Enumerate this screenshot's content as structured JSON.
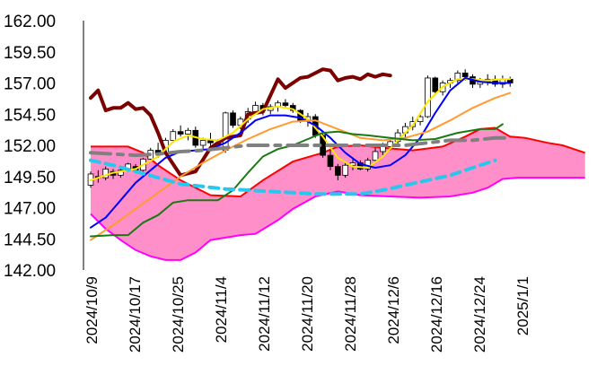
{
  "chart_data": {
    "type": "line",
    "ylim": [
      142,
      162
    ],
    "y_ticks": [
      "162.00",
      "159.50",
      "157.00",
      "154.50",
      "152.00",
      "149.50",
      "147.00",
      "144.50",
      "142.00"
    ],
    "x_ticks": [
      "2024/10/9",
      "2024/10/17",
      "2024/10/25",
      "2024/11/4",
      "2024/11/12",
      "2024/11/20",
      "2024/11/28",
      "2024/12/6",
      "2024/12/16",
      "2024/12/24",
      "2025/1/1"
    ],
    "grid": false,
    "n_slots": 58,
    "candles": [
      [
        148.8,
        149.9,
        148.6,
        149.7
      ],
      [
        149.5,
        150.0,
        149.0,
        149.4
      ],
      [
        149.4,
        150.3,
        149.2,
        150.1
      ],
      [
        149.9,
        150.1,
        149.3,
        149.6
      ],
      [
        149.6,
        150.2,
        149.4,
        150.0
      ],
      [
        150.0,
        150.6,
        149.9,
        150.5
      ],
      [
        150.3,
        150.5,
        149.8,
        150.0
      ],
      [
        150.0,
        151.0,
        149.9,
        150.9
      ],
      [
        150.9,
        151.8,
        150.7,
        151.6
      ],
      [
        151.6,
        152.2,
        151.0,
        151.3
      ],
      [
        151.3,
        152.6,
        151.2,
        152.4
      ],
      [
        152.4,
        153.3,
        152.2,
        153.1
      ],
      [
        153.1,
        153.6,
        152.7,
        152.9
      ],
      [
        152.9,
        153.4,
        152.4,
        153.2
      ],
      [
        153.2,
        153.5,
        151.8,
        152.0
      ],
      [
        152.0,
        152.6,
        151.6,
        152.4
      ],
      [
        152.4,
        153.0,
        151.9,
        152.2
      ],
      [
        152.2,
        152.5,
        151.7,
        152.0
      ],
      [
        151.6,
        154.7,
        151.4,
        154.6
      ],
      [
        154.6,
        154.8,
        153.4,
        153.6
      ],
      [
        153.6,
        154.3,
        153.3,
        154.1
      ],
      [
        154.1,
        155.0,
        153.8,
        154.7
      ],
      [
        154.7,
        155.5,
        154.5,
        155.2
      ],
      [
        155.2,
        155.4,
        154.4,
        154.8
      ],
      [
        154.8,
        155.3,
        154.5,
        155.1
      ],
      [
        155.1,
        155.6,
        154.7,
        155.4
      ],
      [
        155.4,
        155.7,
        155.0,
        155.2
      ],
      [
        155.2,
        155.4,
        154.6,
        154.8
      ],
      [
        154.8,
        154.9,
        153.8,
        154.0
      ],
      [
        154.0,
        154.6,
        153.5,
        154.3
      ],
      [
        154.3,
        154.5,
        152.6,
        152.8
      ],
      [
        152.8,
        153.0,
        151.0,
        151.2
      ],
      [
        151.2,
        151.6,
        150.0,
        150.3
      ],
      [
        150.3,
        150.5,
        149.2,
        149.6
      ],
      [
        149.6,
        150.6,
        149.4,
        150.4
      ],
      [
        150.4,
        151.0,
        150.0,
        150.6
      ],
      [
        150.6,
        150.8,
        150.0,
        150.1
      ],
      [
        150.1,
        151.0,
        149.9,
        150.8
      ],
      [
        150.8,
        151.8,
        150.6,
        151.5
      ],
      [
        151.5,
        152.2,
        151.2,
        151.9
      ],
      [
        151.9,
        152.6,
        151.6,
        152.3
      ],
      [
        152.3,
        153.3,
        152.0,
        153.0
      ],
      [
        153.0,
        153.8,
        152.6,
        153.5
      ],
      [
        153.5,
        154.3,
        153.2,
        153.9
      ],
      [
        153.9,
        154.5,
        153.6,
        154.3
      ],
      [
        154.3,
        157.6,
        154.2,
        157.4
      ],
      [
        157.4,
        157.5,
        156.0,
        156.3
      ],
      [
        156.3,
        157.2,
        156.0,
        157.0
      ],
      [
        157.0,
        157.4,
        156.6,
        157.2
      ],
      [
        157.2,
        158.0,
        157.0,
        157.8
      ],
      [
        157.8,
        158.1,
        157.2,
        157.5
      ],
      [
        157.5,
        157.7,
        156.6,
        156.9
      ],
      [
        156.9,
        157.4,
        156.6,
        157.1
      ],
      [
        157.1,
        157.7,
        156.8,
        157.3
      ],
      [
        157.3,
        157.6,
        156.7,
        156.9
      ],
      [
        156.9,
        157.6,
        156.6,
        157.3
      ],
      [
        157.3,
        157.5,
        156.7,
        157.0
      ]
    ],
    "cloud": {
      "span_a": [
        [
          0,
          151.9
        ],
        [
          5,
          151.9
        ],
        [
          7,
          151.4
        ],
        [
          9,
          150.4
        ],
        [
          12,
          149.2
        ],
        [
          16,
          148.0
        ],
        [
          20,
          147.9
        ],
        [
          23,
          149.2
        ],
        [
          27,
          150.7
        ],
        [
          31,
          151.4
        ],
        [
          33,
          151.9
        ],
        [
          36,
          152.0
        ],
        [
          39,
          151.8
        ],
        [
          43,
          151.6
        ],
        [
          47,
          151.9
        ],
        [
          50,
          152.7
        ],
        [
          52,
          153.3
        ],
        [
          54,
          153.4
        ],
        [
          56,
          152.7
        ],
        [
          58,
          152.6
        ],
        [
          61,
          152.2
        ],
        [
          63,
          152.0
        ],
        [
          66,
          151.4
        ]
      ],
      "span_b": [
        [
          0,
          146.5
        ],
        [
          2,
          145.3
        ],
        [
          4,
          144.4
        ],
        [
          6,
          143.6
        ],
        [
          8,
          143.1
        ],
        [
          10,
          142.8
        ],
        [
          12,
          142.8
        ],
        [
          14,
          143.4
        ],
        [
          16,
          144.4
        ],
        [
          18,
          144.6
        ],
        [
          20,
          144.8
        ],
        [
          22,
          144.9
        ],
        [
          25,
          146.0
        ],
        [
          27,
          146.9
        ],
        [
          30,
          147.9
        ],
        [
          33,
          148.3
        ],
        [
          36,
          148.0
        ],
        [
          40,
          147.9
        ],
        [
          44,
          147.8
        ],
        [
          48,
          147.9
        ],
        [
          51,
          148.2
        ],
        [
          53,
          148.6
        ],
        [
          55,
          149.3
        ],
        [
          57,
          149.4
        ],
        [
          60,
          149.4
        ],
        [
          63,
          149.4
        ],
        [
          66,
          149.4
        ]
      ]
    },
    "series": [
      {
        "color": "#7b0000",
        "values": [
          [
            0,
            155.8
          ],
          [
            1,
            156.4
          ],
          [
            2,
            154.8
          ],
          [
            3,
            155.0
          ],
          [
            4,
            155.0
          ],
          [
            5,
            155.4
          ],
          [
            6,
            154.9
          ],
          [
            7,
            155.0
          ],
          [
            8,
            154.4
          ],
          [
            9,
            153.0
          ],
          [
            10,
            151.4
          ],
          [
            12,
            149.6
          ],
          [
            14,
            149.9
          ],
          [
            16,
            151.8
          ],
          [
            18,
            152.6
          ],
          [
            20,
            152.8
          ],
          [
            21,
            154.5
          ],
          [
            23,
            154.7
          ],
          [
            25,
            157.3
          ],
          [
            26,
            156.6
          ],
          [
            28,
            157.4
          ],
          [
            29,
            157.5
          ],
          [
            31,
            158.1
          ],
          [
            32,
            158.0
          ],
          [
            33,
            157.2
          ],
          [
            34,
            157.4
          ],
          [
            35,
            157.5
          ],
          [
            36,
            157.3
          ],
          [
            37,
            157.7
          ],
          [
            38,
            157.5
          ],
          [
            39,
            157.7
          ],
          [
            40,
            157.6
          ]
        ]
      },
      {
        "color": "#ffe800",
        "values": [
          [
            0,
            149.2
          ],
          [
            3,
            149.8
          ],
          [
            6,
            150.1
          ],
          [
            9,
            151.1
          ],
          [
            11,
            152.3
          ],
          [
            13,
            152.8
          ],
          [
            15,
            152.5
          ],
          [
            17,
            152.4
          ],
          [
            19,
            153.0
          ],
          [
            21,
            154.1
          ],
          [
            23,
            154.9
          ],
          [
            25,
            155.1
          ],
          [
            27,
            154.9
          ],
          [
            29,
            154.1
          ],
          [
            31,
            152.7
          ],
          [
            33,
            151.0
          ],
          [
            35,
            150.3
          ],
          [
            37,
            150.2
          ],
          [
            39,
            151.1
          ],
          [
            41,
            152.4
          ],
          [
            43,
            153.6
          ],
          [
            45,
            155.5
          ],
          [
            47,
            156.7
          ],
          [
            49,
            157.3
          ],
          [
            51,
            157.3
          ],
          [
            53,
            157.2
          ],
          [
            55,
            157.3
          ],
          [
            56,
            157.3
          ]
        ]
      },
      {
        "color": "#0000ff",
        "values": [
          [
            0,
            145.4
          ],
          [
            2,
            146.2
          ],
          [
            4,
            147.6
          ],
          [
            6,
            149.0
          ],
          [
            8,
            150.0
          ],
          [
            10,
            151.0
          ],
          [
            12,
            151.5
          ],
          [
            14,
            151.6
          ],
          [
            16,
            151.7
          ],
          [
            18,
            152.2
          ],
          [
            20,
            153.0
          ],
          [
            22,
            154.0
          ],
          [
            24,
            154.4
          ],
          [
            26,
            154.4
          ],
          [
            28,
            154.2
          ],
          [
            30,
            153.6
          ],
          [
            32,
            152.6
          ],
          [
            34,
            151.4
          ],
          [
            36,
            150.5
          ],
          [
            38,
            150.2
          ],
          [
            40,
            150.4
          ],
          [
            42,
            151.2
          ],
          [
            44,
            152.6
          ],
          [
            46,
            154.6
          ],
          [
            48,
            156.4
          ],
          [
            50,
            157.4
          ],
          [
            52,
            157.1
          ],
          [
            54,
            157.0
          ],
          [
            56,
            157.0
          ]
        ]
      },
      {
        "color": "#ff9b30",
        "values": [
          [
            0,
            144.4
          ],
          [
            3,
            145.6
          ],
          [
            6,
            146.9
          ],
          [
            9,
            148.2
          ],
          [
            12,
            149.5
          ],
          [
            15,
            150.6
          ],
          [
            18,
            151.6
          ],
          [
            21,
            152.5
          ],
          [
            24,
            153.3
          ],
          [
            27,
            153.9
          ],
          [
            30,
            154.0
          ],
          [
            33,
            153.3
          ],
          [
            36,
            152.6
          ],
          [
            39,
            152.4
          ],
          [
            42,
            152.6
          ],
          [
            45,
            153.1
          ],
          [
            48,
            154.0
          ],
          [
            51,
            155.0
          ],
          [
            54,
            155.8
          ],
          [
            56,
            156.2
          ]
        ]
      },
      {
        "color": "#1a7a12",
        "values": [
          [
            0,
            144.7
          ],
          [
            3,
            144.8
          ],
          [
            5,
            144.8
          ],
          [
            7,
            145.8
          ],
          [
            9,
            146.4
          ],
          [
            11,
            147.4
          ],
          [
            13,
            147.6
          ],
          [
            15,
            147.6
          ],
          [
            17,
            147.6
          ],
          [
            19,
            148.4
          ],
          [
            21,
            149.8
          ],
          [
            23,
            151.1
          ],
          [
            25,
            151.7
          ],
          [
            27,
            152.0
          ],
          [
            29,
            152.5
          ],
          [
            31,
            153.0
          ],
          [
            33,
            153.1
          ],
          [
            35,
            152.9
          ],
          [
            37,
            152.8
          ],
          [
            40,
            152.6
          ],
          [
            43,
            152.4
          ],
          [
            46,
            152.5
          ],
          [
            49,
            153.0
          ],
          [
            52,
            153.3
          ],
          [
            54,
            153.3
          ],
          [
            55,
            153.7
          ]
        ]
      },
      {
        "color": "#808080",
        "dash": "long",
        "values": [
          [
            0,
            151.4
          ],
          [
            3,
            151.3
          ],
          [
            6,
            151.2
          ],
          [
            9,
            151.3
          ],
          [
            12,
            151.5
          ],
          [
            15,
            151.6
          ],
          [
            18,
            151.8
          ],
          [
            21,
            152.0
          ],
          [
            24,
            152.0
          ],
          [
            27,
            152.0
          ],
          [
            30,
            152.0
          ],
          [
            33,
            152.0
          ],
          [
            36,
            152.0
          ],
          [
            39,
            152.0
          ],
          [
            42,
            152.0
          ],
          [
            45,
            152.2
          ],
          [
            48,
            152.4
          ],
          [
            51,
            152.4
          ],
          [
            54,
            152.6
          ],
          [
            56,
            152.6
          ]
        ]
      },
      {
        "color": "#29c6ee",
        "dash": "short",
        "values": [
          [
            0,
            150.8
          ],
          [
            3,
            150.4
          ],
          [
            6,
            149.9
          ],
          [
            9,
            149.4
          ],
          [
            12,
            148.9
          ],
          [
            15,
            148.7
          ],
          [
            18,
            148.5
          ],
          [
            21,
            148.4
          ],
          [
            24,
            148.3
          ],
          [
            27,
            148.2
          ],
          [
            30,
            148.1
          ],
          [
            33,
            148.1
          ],
          [
            36,
            148.1
          ],
          [
            39,
            148.4
          ],
          [
            42,
            148.8
          ],
          [
            45,
            149.2
          ],
          [
            48,
            149.6
          ],
          [
            51,
            150.2
          ],
          [
            54,
            150.8
          ]
        ]
      }
    ]
  }
}
